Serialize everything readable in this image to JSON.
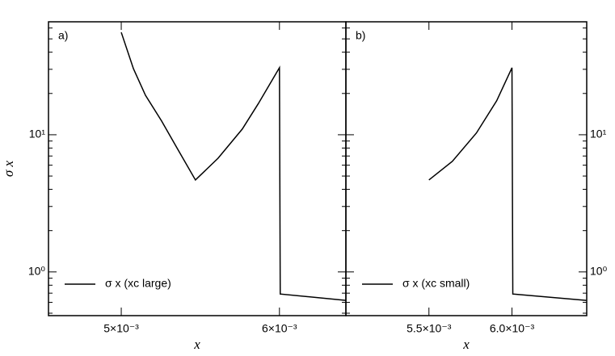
{
  "chart_data": [
    {
      "type": "line",
      "panel_label": "a)",
      "xlabel": "x",
      "ylabel": "σ x",
      "log_y": true,
      "y_axis_side": "left",
      "xlim": [
        0.00454,
        0.00642
      ],
      "ylim": [
        0.48,
        66.6
      ],
      "xticks": [
        {
          "value": 0.005,
          "label": "5×10⁻³"
        },
        {
          "value": 0.006,
          "label": "6×10⁻³"
        }
      ],
      "yticks": [
        {
          "value": 1,
          "label": "10⁰"
        },
        {
          "value": 10,
          "label": "10¹"
        }
      ],
      "legend": "lower left",
      "x": [
        0.005,
        0.005077,
        0.005153,
        0.005255,
        0.005357,
        0.005469,
        0.005612,
        0.005765,
        0.005867,
        0.006,
        0.006005,
        0.00642
      ],
      "series": [
        {
          "name": "σ x (xc large)",
          "color": "#000000",
          "values": [
            55.8,
            30.3,
            19.4,
            12.6,
            7.84,
            4.68,
            6.74,
            11.0,
            16.9,
            30.8,
            0.69,
            0.62
          ]
        }
      ]
    },
    {
      "type": "line",
      "panel_label": "b)",
      "xlabel": "x",
      "log_y": true,
      "y_axis_side": "right",
      "xlim": [
        0.005,
        0.00645
      ],
      "ylim": [
        0.48,
        66.6
      ],
      "xticks": [
        {
          "value": 0.0055,
          "label": "5.5×10⁻³"
        },
        {
          "value": 0.006,
          "label": "6.0×10⁻³"
        }
      ],
      "yticks": [
        {
          "value": 1,
          "label": "10⁰"
        },
        {
          "value": 10,
          "label": "10¹"
        }
      ],
      "legend": "lower left",
      "x": [
        0.0055,
        0.005641,
        0.005786,
        0.005908,
        0.006,
        0.006005,
        0.006447
      ],
      "series": [
        {
          "name": "σ x (xc small)",
          "color": "#000000",
          "values": [
            4.68,
            6.4,
            10.3,
            17.7,
            30.8,
            0.69,
            0.62
          ]
        }
      ]
    }
  ]
}
